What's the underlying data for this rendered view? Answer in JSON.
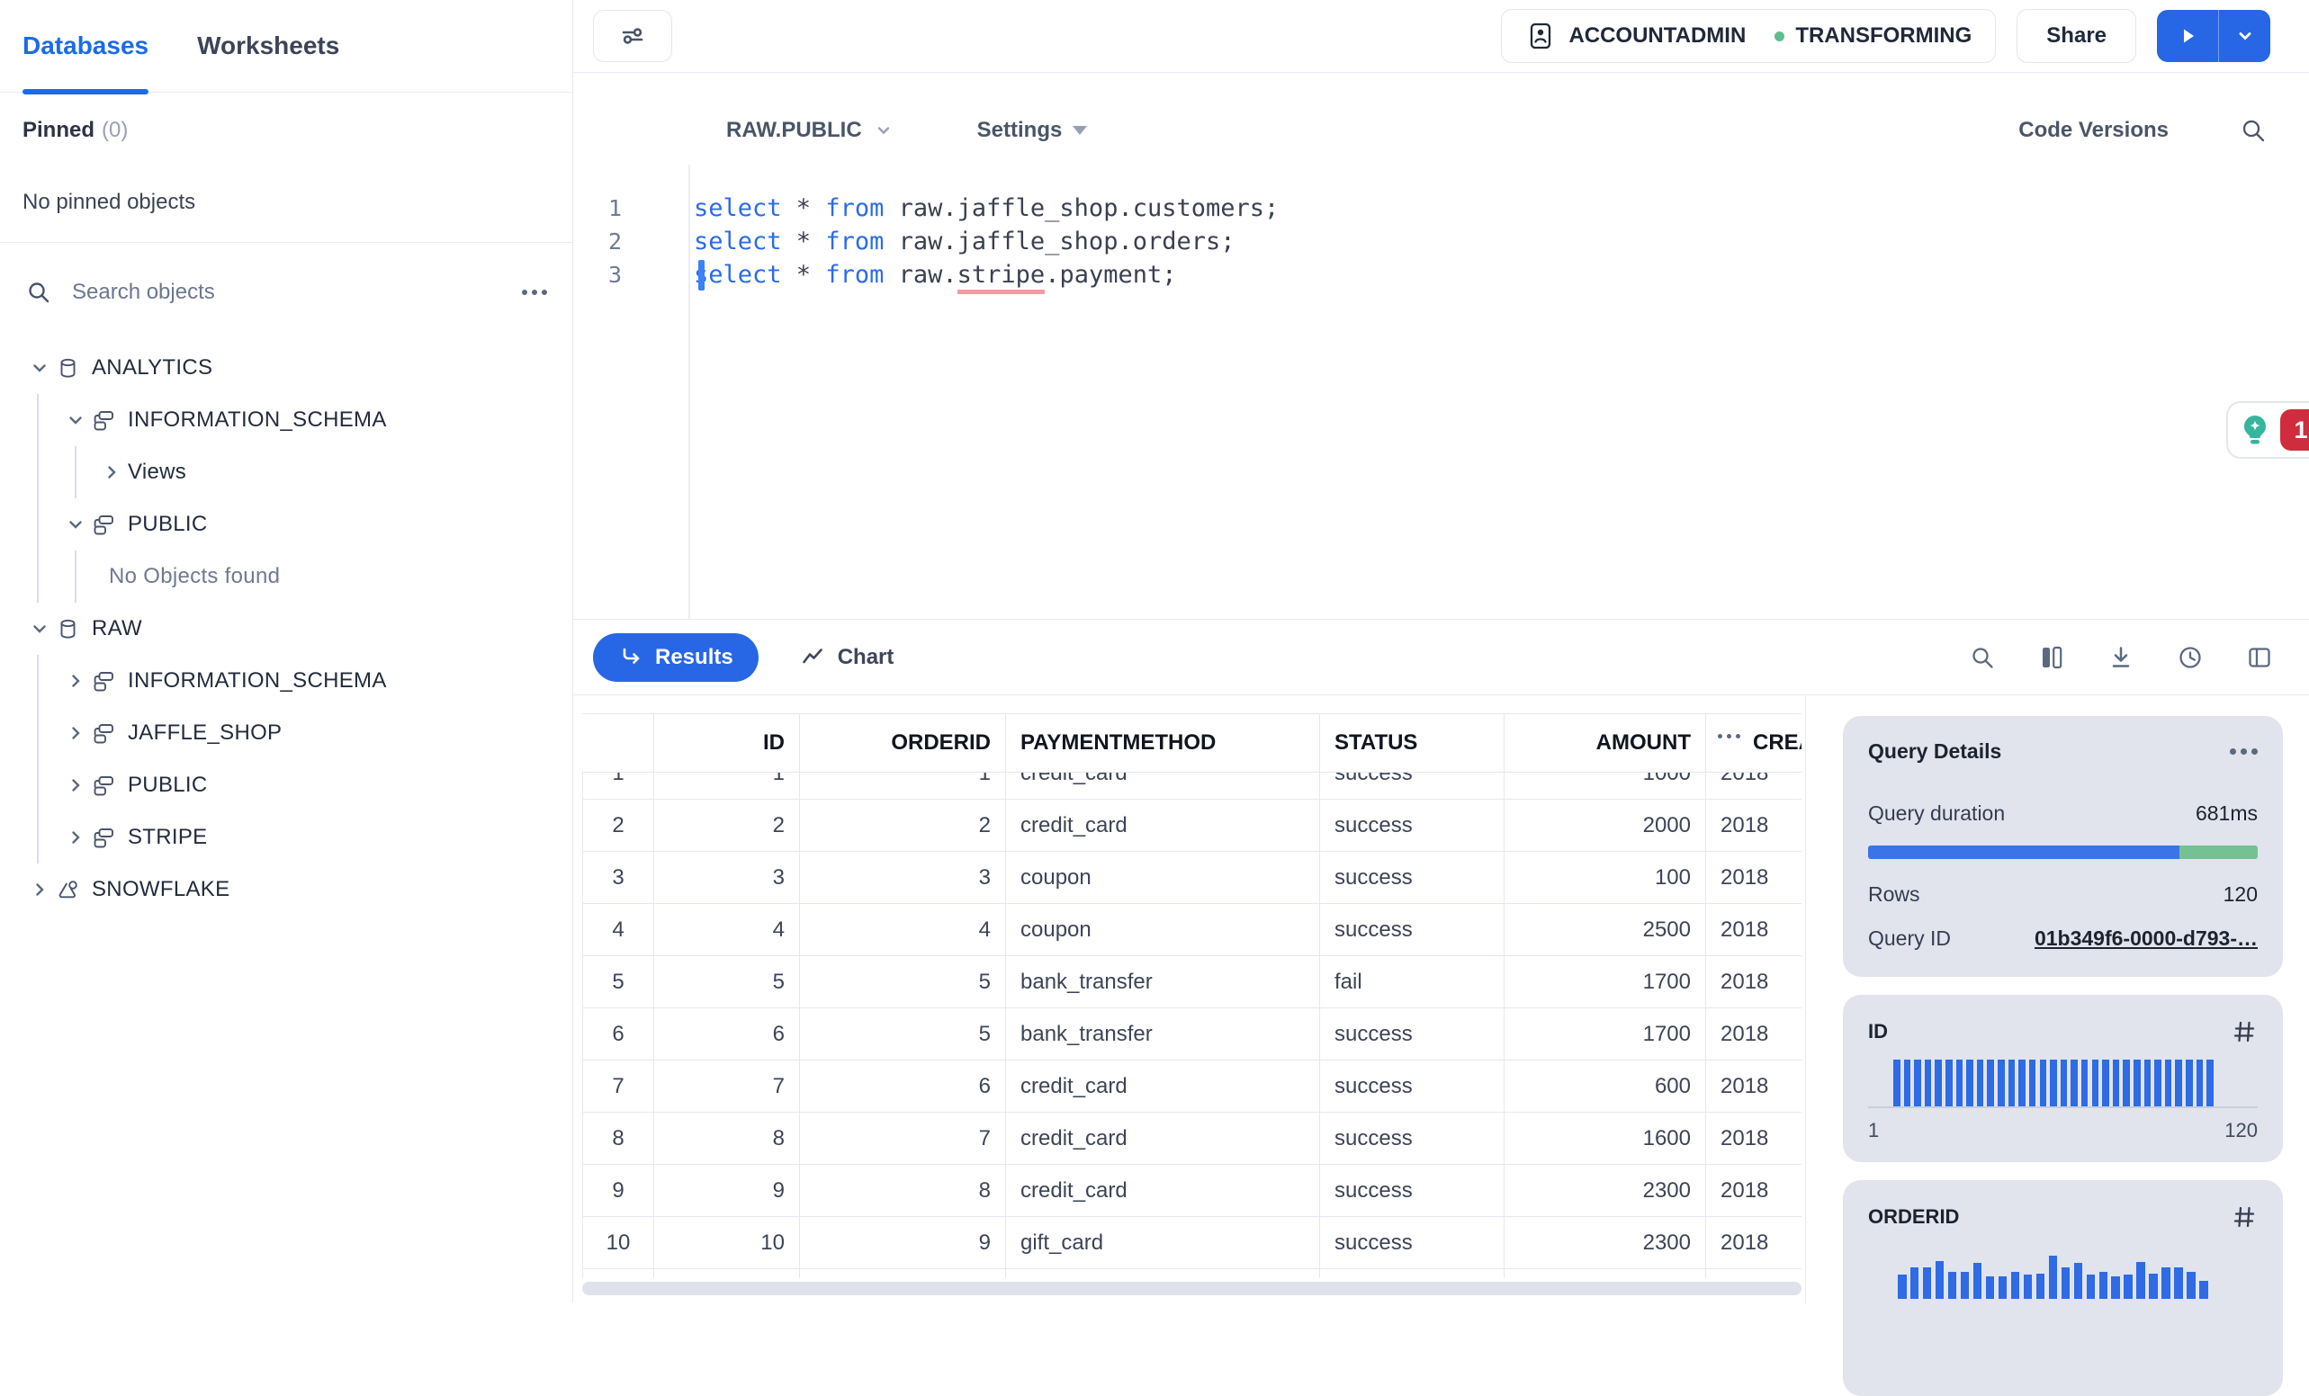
{
  "sidebar": {
    "tabs": [
      {
        "label": "Databases"
      },
      {
        "label": "Worksheets"
      }
    ],
    "active_tab": "Databases",
    "pinned": {
      "label": "Pinned",
      "count": "(0)",
      "empty": "No pinned objects"
    },
    "search": {
      "placeholder": "Search objects",
      "icon": "search-icon",
      "more_icon": "ellipsis-icon"
    },
    "tree": [
      {
        "label": "ANALYTICS",
        "level": 0,
        "icon": "database",
        "chevron": "down",
        "guides": []
      },
      {
        "label": "INFORMATION_SCHEMA",
        "level": 1,
        "icon": "schema",
        "chevron": "down",
        "guides": [
          41
        ]
      },
      {
        "label": "Views",
        "level": 2,
        "icon": null,
        "chevron": "right",
        "guides": [
          41,
          83
        ]
      },
      {
        "label": "PUBLIC",
        "level": 1,
        "icon": "schema",
        "chevron": "down",
        "guides": [
          41
        ]
      },
      {
        "label": "No Objects found",
        "level": 2,
        "icon": null,
        "chevron": null,
        "muted": true,
        "guides": [
          41,
          83
        ]
      },
      {
        "label": "RAW",
        "level": 0,
        "icon": "database",
        "chevron": "down",
        "guides": []
      },
      {
        "label": "INFORMATION_SCHEMA",
        "level": 1,
        "icon": "schema",
        "chevron": "right",
        "guides": [
          41
        ]
      },
      {
        "label": "JAFFLE_SHOP",
        "level": 1,
        "icon": "schema",
        "chevron": "right",
        "guides": [
          41
        ]
      },
      {
        "label": "PUBLIC",
        "level": 1,
        "icon": "schema",
        "chevron": "right",
        "guides": [
          41
        ]
      },
      {
        "label": "STRIPE",
        "level": 1,
        "icon": "schema",
        "chevron": "right",
        "guides": [
          41
        ]
      },
      {
        "label": "SNOWFLAKE",
        "level": 0,
        "icon": "snowflake",
        "chevron": "right",
        "guides": []
      }
    ]
  },
  "topbar": {
    "context": {
      "role": "ACCOUNTADMIN",
      "warehouse": "TRANSFORMING"
    },
    "share_label": "Share"
  },
  "editor": {
    "context_selector": "RAW.PUBLIC",
    "settings_label": "Settings",
    "code_versions_label": "Code Versions",
    "lines": [
      {
        "num": "1",
        "parts": [
          {
            "t": "kw",
            "s": "select"
          },
          {
            "t": "p",
            "s": " * "
          },
          {
            "t": "kw",
            "s": "from"
          },
          {
            "t": "p",
            "s": " raw.jaffle_shop.customers;"
          }
        ]
      },
      {
        "num": "2",
        "parts": [
          {
            "t": "kw",
            "s": "select"
          },
          {
            "t": "p",
            "s": " * "
          },
          {
            "t": "kw",
            "s": "from"
          },
          {
            "t": "p",
            "s": " raw.jaffle_shop.orders;"
          }
        ]
      },
      {
        "num": "3",
        "cursor": true,
        "parts": [
          {
            "t": "kw",
            "s": "select"
          },
          {
            "t": "p",
            "s": " * "
          },
          {
            "t": "kw",
            "s": "from"
          },
          {
            "t": "p",
            "s": " raw."
          },
          {
            "t": "err",
            "s": "stripe"
          },
          {
            "t": "p",
            "s": ".payment;"
          }
        ]
      }
    ],
    "copilot_badge_count": "1"
  },
  "results": {
    "tabs": [
      {
        "label": "Results",
        "icon": "return-arrow-icon",
        "active": true
      },
      {
        "label": "Chart",
        "icon": "line-chart-icon",
        "active": false
      }
    ],
    "toolbar_icons": [
      "search-icon",
      "columns-icon",
      "download-icon",
      "history-icon",
      "layout-icon"
    ]
  },
  "table": {
    "columns": [
      {
        "label": "",
        "align": "center"
      },
      {
        "label": "ID",
        "align": "right"
      },
      {
        "label": "ORDERID",
        "align": "right"
      },
      {
        "label": "PAYMENTMETHOD",
        "align": "left"
      },
      {
        "label": "STATUS",
        "align": "left"
      },
      {
        "label": "AMOUNT",
        "align": "right"
      },
      {
        "label": "CREATED",
        "align": "left",
        "menu_dots": true
      }
    ],
    "rows": [
      [
        "1",
        "1",
        "1",
        "credit_card",
        "success",
        "1000",
        "2018"
      ],
      [
        "2",
        "2",
        "2",
        "credit_card",
        "success",
        "2000",
        "2018"
      ],
      [
        "3",
        "3",
        "3",
        "coupon",
        "success",
        "100",
        "2018"
      ],
      [
        "4",
        "4",
        "4",
        "coupon",
        "success",
        "2500",
        "2018"
      ],
      [
        "5",
        "5",
        "5",
        "bank_transfer",
        "fail",
        "1700",
        "2018"
      ],
      [
        "6",
        "6",
        "5",
        "bank_transfer",
        "success",
        "1700",
        "2018"
      ],
      [
        "7",
        "7",
        "6",
        "credit_card",
        "success",
        "600",
        "2018"
      ],
      [
        "8",
        "8",
        "7",
        "credit_card",
        "success",
        "1600",
        "2018"
      ],
      [
        "9",
        "9",
        "8",
        "credit_card",
        "success",
        "2300",
        "2018"
      ],
      [
        "10",
        "10",
        "9",
        "gift_card",
        "success",
        "2300",
        "2018"
      ],
      [
        "",
        "",
        "",
        "",
        "",
        "",
        ""
      ]
    ]
  },
  "query_details": {
    "title": "Query Details",
    "menu_icon": "ellipsis-icon",
    "duration_label": "Query duration",
    "duration_value": "681ms",
    "progress": {
      "blue_pct": 80,
      "green_pct": 20,
      "blue_color": "#3b74e7",
      "green_color": "#74c193"
    },
    "rows_label": "Rows",
    "rows_value": "120",
    "query_id_label": "Query ID",
    "query_id_value": "01b349f6-0000-d793-…"
  },
  "column_panels": [
    {
      "title": "ID",
      "icon": "hash-icon",
      "type": "histogram",
      "bar_count": 31,
      "uniform_height": 52,
      "min_label": "1",
      "max_label": "120"
    },
    {
      "title": "ORDERID",
      "icon": "hash-icon",
      "type": "histogram",
      "bar_heights": [
        27,
        35,
        35,
        42,
        30,
        30,
        40,
        25,
        25,
        30,
        27,
        28,
        48,
        35,
        40,
        27,
        30,
        25,
        27,
        41,
        28,
        35,
        35,
        30,
        20
      ]
    }
  ],
  "colors": {
    "accent_blue": "#1a6ce8",
    "run_blue": "#2767e5",
    "badge_red": "#cf2d3e",
    "copilot_teal": "#35b59e",
    "status_green_dot": "#5fbe8e",
    "card_bg": "#e1e4ed",
    "histogram_blue": "#2e6be4"
  }
}
